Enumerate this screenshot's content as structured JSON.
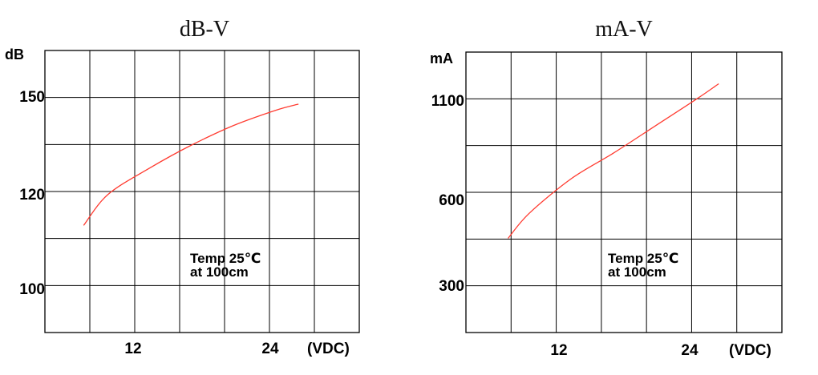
{
  "chart_data": [
    {
      "type": "line",
      "title": "dB-V",
      "ylabel": "dB",
      "xlabel": "(VDC)",
      "xlim": [
        6,
        36
      ],
      "x_ticks": [
        "12",
        "24"
      ],
      "y_ticks": [
        "150",
        "120",
        "100"
      ],
      "grid": true,
      "series_color": "#ff3b30",
      "annotation": [
        "Temp 25℃",
        "at 100cm"
      ],
      "series": [
        {
          "x": [
            9.7,
            12,
            16,
            20,
            24,
            28,
            30.2
          ],
          "y": [
            113,
            119.5,
            127.7,
            135,
            141.2,
            146,
            148
          ]
        }
      ]
    },
    {
      "type": "line",
      "title": "mA-V",
      "ylabel": "mA",
      "xlabel": "(VDC)",
      "xlim": [
        6,
        36
      ],
      "x_ticks": [
        "12",
        "24"
      ],
      "y_ticks": [
        "1100",
        "600",
        "300"
      ],
      "grid": true,
      "series_color": "#ff3b30",
      "annotation": [
        "Temp 25℃",
        "at 100cm"
      ],
      "series": [
        {
          "x": [
            10,
            12,
            16,
            20,
            24,
            28,
            30
          ],
          "y": [
            450,
            530,
            670,
            810,
            960,
            1110,
            1190
          ]
        }
      ]
    }
  ]
}
